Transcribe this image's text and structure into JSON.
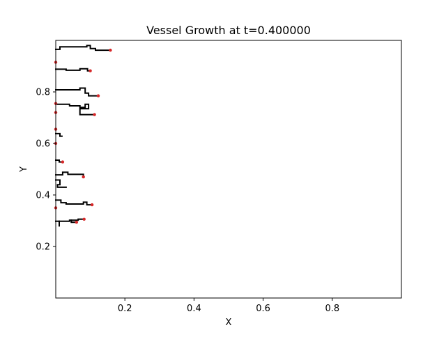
{
  "chart_data": {
    "type": "line",
    "title": "Vessel Growth at t=0.400000",
    "xlabel": "X",
    "ylabel": "Y",
    "xlim": [
      0.0,
      1.0
    ],
    "ylim": [
      0.0,
      1.0
    ],
    "xticks": [
      0.2,
      0.4,
      0.6,
      0.8
    ],
    "xtick_labels": [
      "0.2",
      "0.4",
      "0.6",
      "0.8"
    ],
    "yticks": [
      0.2,
      0.4,
      0.6,
      0.8
    ],
    "ytick_labels": [
      "0.2",
      "0.4",
      "0.6",
      "0.8"
    ],
    "grid": false,
    "legend": "none",
    "colors": {
      "vessel": "#000000",
      "tip": "#d62728",
      "axes": "#000000",
      "background": "#ffffff"
    },
    "vessels": [
      [
        [
          0.0,
          0.965
        ],
        [
          0.012,
          0.965
        ],
        [
          0.012,
          0.975
        ],
        [
          0.09,
          0.975
        ],
        [
          0.09,
          0.98
        ],
        [
          0.1,
          0.98
        ],
        [
          0.1,
          0.968
        ],
        [
          0.115,
          0.968
        ],
        [
          0.115,
          0.962
        ],
        [
          0.158,
          0.962
        ]
      ],
      [
        [
          0.0,
          0.888
        ],
        [
          0.03,
          0.888
        ],
        [
          0.03,
          0.884
        ],
        [
          0.07,
          0.884
        ],
        [
          0.07,
          0.89
        ],
        [
          0.092,
          0.89
        ],
        [
          0.092,
          0.882
        ],
        [
          0.1,
          0.882
        ]
      ],
      [
        [
          0.0,
          0.808
        ],
        [
          0.07,
          0.808
        ],
        [
          0.07,
          0.815
        ],
        [
          0.085,
          0.815
        ],
        [
          0.085,
          0.795
        ],
        [
          0.095,
          0.795
        ],
        [
          0.095,
          0.785
        ],
        [
          0.123,
          0.785
        ]
      ],
      [
        [
          0.0,
          0.752
        ],
        [
          0.04,
          0.752
        ],
        [
          0.04,
          0.746
        ],
        [
          0.07,
          0.746
        ],
        [
          0.07,
          0.74
        ],
        [
          0.085,
          0.74
        ],
        [
          0.085,
          0.752
        ],
        [
          0.095,
          0.752
        ],
        [
          0.095,
          0.735
        ],
        [
          0.07,
          0.735
        ],
        [
          0.07,
          0.712
        ],
        [
          0.112,
          0.712
        ]
      ],
      [
        [
          0.0,
          0.638
        ],
        [
          0.012,
          0.638
        ],
        [
          0.012,
          0.628
        ],
        [
          0.018,
          0.628
        ]
      ],
      [
        [
          0.0,
          0.535
        ],
        [
          0.01,
          0.535
        ],
        [
          0.01,
          0.528
        ],
        [
          0.02,
          0.528
        ]
      ],
      [
        [
          0.0,
          0.478
        ],
        [
          0.02,
          0.478
        ],
        [
          0.02,
          0.488
        ],
        [
          0.035,
          0.488
        ],
        [
          0.035,
          0.48
        ],
        [
          0.08,
          0.48
        ],
        [
          0.08,
          0.47
        ]
      ],
      [
        [
          0.0,
          0.458
        ],
        [
          0.012,
          0.458
        ],
        [
          0.012,
          0.44
        ],
        [
          0.005,
          0.44
        ],
        [
          0.005,
          0.43
        ],
        [
          0.03,
          0.43
        ]
      ],
      [
        [
          0.0,
          0.38
        ],
        [
          0.015,
          0.38
        ],
        [
          0.015,
          0.37
        ],
        [
          0.03,
          0.37
        ],
        [
          0.03,
          0.365
        ],
        [
          0.08,
          0.365
        ],
        [
          0.08,
          0.372
        ],
        [
          0.09,
          0.372
        ],
        [
          0.09,
          0.362
        ],
        [
          0.105,
          0.362
        ]
      ],
      [
        [
          0.0,
          0.298
        ],
        [
          0.04,
          0.298
        ],
        [
          0.04,
          0.302
        ],
        [
          0.065,
          0.302
        ],
        [
          0.065,
          0.306
        ],
        [
          0.082,
          0.306
        ]
      ],
      [
        [
          0.045,
          0.302
        ],
        [
          0.045,
          0.294
        ],
        [
          0.06,
          0.294
        ]
      ],
      [
        [
          0.01,
          0.298
        ],
        [
          0.01,
          0.28
        ]
      ]
    ],
    "tips": [
      [
        0.158,
        0.962
      ],
      [
        0.0,
        0.915
      ],
      [
        0.1,
        0.882
      ],
      [
        0.123,
        0.785
      ],
      [
        0.0,
        0.755
      ],
      [
        0.112,
        0.712
      ],
      [
        0.0,
        0.72
      ],
      [
        0.0,
        0.655
      ],
      [
        0.0,
        0.6
      ],
      [
        0.02,
        0.528
      ],
      [
        0.08,
        0.47
      ],
      [
        0.105,
        0.362
      ],
      [
        0.0,
        0.35
      ],
      [
        0.082,
        0.306
      ],
      [
        0.06,
        0.294
      ]
    ]
  }
}
